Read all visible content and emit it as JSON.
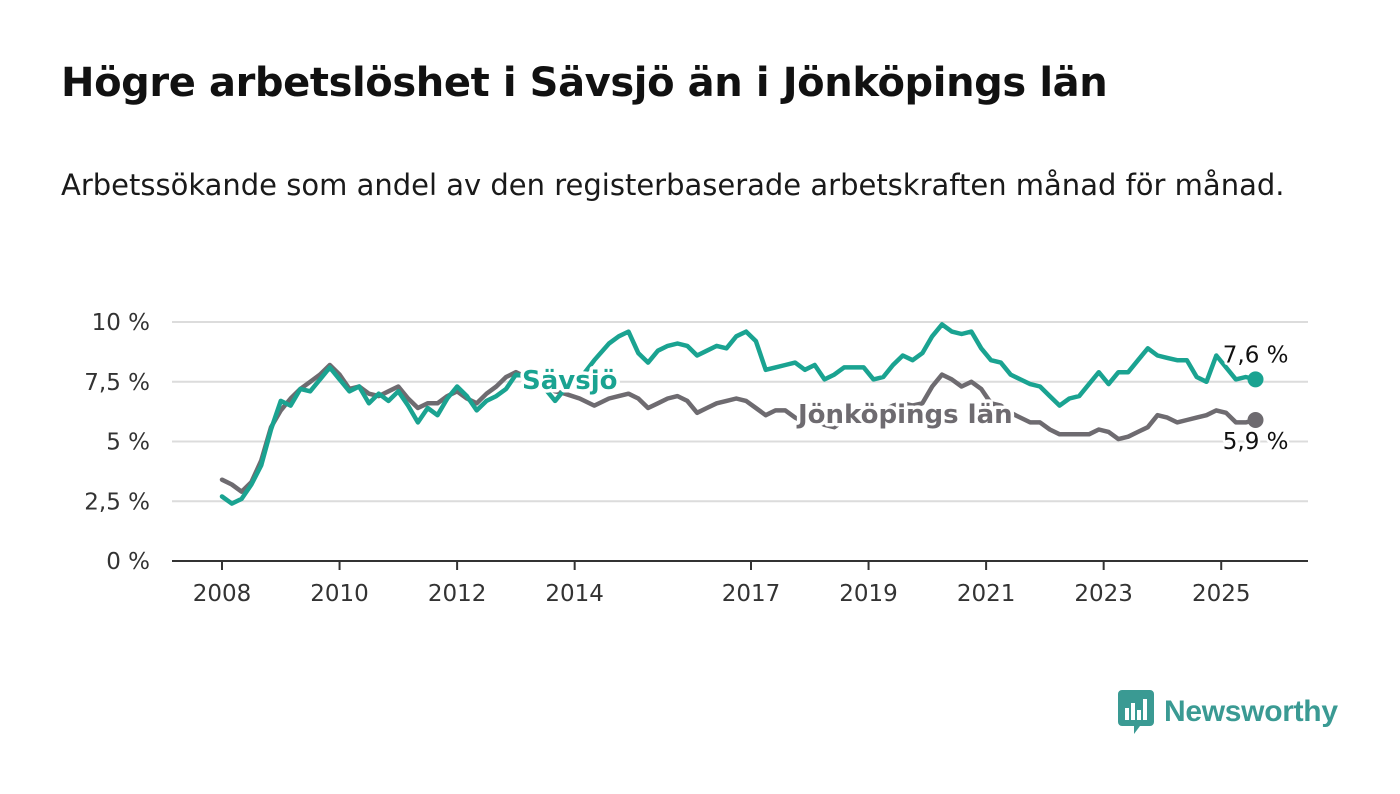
{
  "title": "Högre arbetslöshet i Sävsjö än i Jönköpings län",
  "subtitle": "Arbetssökande som andel av den registerbaserade arbetskraften månad för månad.",
  "brand": {
    "name": "Newsworthy",
    "icon": "newsworthy-logo-icon",
    "color": "#3a9a93"
  },
  "chart_data": {
    "type": "line",
    "title": "Högre arbetslöshet i Sävsjö än i Jönköpings län",
    "subtitle": "Arbetssökande som andel av den registerbaserade arbetskraften månad för månad.",
    "xlabel": "",
    "ylabel": "",
    "x_ticks": [
      "2008",
      "2010",
      "2012",
      "2014",
      "2017",
      "2019",
      "2021",
      "2023",
      "2025"
    ],
    "y_ticks": [
      "0 %",
      "2,5 %",
      "5 %",
      "7,5 %",
      "10 %"
    ],
    "ylim": [
      0,
      10
    ],
    "xlim": [
      "2007-02",
      "2026-05"
    ],
    "grid": "horizontal",
    "legend": "inline labels",
    "series": [
      {
        "name": "Sävsjö",
        "color": "#1aa391",
        "end_label": "7,6 %",
        "points": [
          [
            "2008-01",
            2.7
          ],
          [
            "2008-03",
            2.4
          ],
          [
            "2008-05",
            2.6
          ],
          [
            "2008-07",
            3.2
          ],
          [
            "2008-09",
            4.0
          ],
          [
            "2008-11",
            5.5
          ],
          [
            "2009-01",
            6.7
          ],
          [
            "2009-03",
            6.5
          ],
          [
            "2009-05",
            7.2
          ],
          [
            "2009-07",
            7.1
          ],
          [
            "2009-09",
            7.6
          ],
          [
            "2009-11",
            8.1
          ],
          [
            "2010-01",
            7.6
          ],
          [
            "2010-03",
            7.1
          ],
          [
            "2010-05",
            7.3
          ],
          [
            "2010-07",
            6.6
          ],
          [
            "2010-09",
            7.0
          ],
          [
            "2010-11",
            6.7
          ],
          [
            "2011-01",
            7.1
          ],
          [
            "2011-03",
            6.5
          ],
          [
            "2011-05",
            5.8
          ],
          [
            "2011-07",
            6.4
          ],
          [
            "2011-09",
            6.1
          ],
          [
            "2011-11",
            6.8
          ],
          [
            "2012-01",
            7.3
          ],
          [
            "2012-03",
            6.9
          ],
          [
            "2012-05",
            6.3
          ],
          [
            "2012-07",
            6.7
          ],
          [
            "2012-09",
            6.9
          ],
          [
            "2012-11",
            7.2
          ],
          [
            "2013-01",
            7.8
          ],
          [
            "2013-04",
            7.7
          ],
          [
            "2013-07",
            7.2
          ],
          [
            "2013-09",
            6.7
          ],
          [
            "2013-11",
            7.2
          ],
          [
            "2014-02",
            7.6
          ],
          [
            "2014-05",
            8.4
          ],
          [
            "2014-08",
            9.1
          ],
          [
            "2014-10",
            9.4
          ],
          [
            "2014-12",
            9.6
          ],
          [
            "2015-02",
            8.7
          ],
          [
            "2015-04",
            8.3
          ],
          [
            "2015-06",
            8.8
          ],
          [
            "2015-08",
            9.0
          ],
          [
            "2015-10",
            9.1
          ],
          [
            "2015-12",
            9.0
          ],
          [
            "2016-02",
            8.6
          ],
          [
            "2016-04",
            8.8
          ],
          [
            "2016-06",
            9.0
          ],
          [
            "2016-08",
            8.9
          ],
          [
            "2016-10",
            9.4
          ],
          [
            "2016-12",
            9.6
          ],
          [
            "2017-02",
            9.2
          ],
          [
            "2017-04",
            8.0
          ],
          [
            "2017-06",
            8.1
          ],
          [
            "2017-08",
            8.2
          ],
          [
            "2017-10",
            8.3
          ],
          [
            "2017-12",
            8.0
          ],
          [
            "2018-02",
            8.2
          ],
          [
            "2018-04",
            7.6
          ],
          [
            "2018-06",
            7.8
          ],
          [
            "2018-08",
            8.1
          ],
          [
            "2018-10",
            8.1
          ],
          [
            "2018-12",
            8.1
          ],
          [
            "2019-02",
            7.6
          ],
          [
            "2019-04",
            7.7
          ],
          [
            "2019-06",
            8.2
          ],
          [
            "2019-08",
            8.6
          ],
          [
            "2019-10",
            8.4
          ],
          [
            "2019-12",
            8.7
          ],
          [
            "2020-02",
            9.4
          ],
          [
            "2020-04",
            9.9
          ],
          [
            "2020-06",
            9.6
          ],
          [
            "2020-08",
            9.5
          ],
          [
            "2020-10",
            9.6
          ],
          [
            "2020-12",
            8.9
          ],
          [
            "2021-02",
            8.4
          ],
          [
            "2021-04",
            8.3
          ],
          [
            "2021-06",
            7.8
          ],
          [
            "2021-08",
            7.6
          ],
          [
            "2021-10",
            7.4
          ],
          [
            "2021-12",
            7.3
          ],
          [
            "2022-02",
            6.9
          ],
          [
            "2022-04",
            6.5
          ],
          [
            "2022-06",
            6.8
          ],
          [
            "2022-08",
            6.9
          ],
          [
            "2022-10",
            7.4
          ],
          [
            "2022-12",
            7.9
          ],
          [
            "2023-02",
            7.4
          ],
          [
            "2023-04",
            7.9
          ],
          [
            "2023-06",
            7.9
          ],
          [
            "2023-08",
            8.4
          ],
          [
            "2023-10",
            8.9
          ],
          [
            "2023-12",
            8.6
          ],
          [
            "2024-02",
            8.5
          ],
          [
            "2024-04",
            8.4
          ],
          [
            "2024-06",
            8.4
          ],
          [
            "2024-08",
            7.7
          ],
          [
            "2024-10",
            7.5
          ],
          [
            "2024-12",
            8.6
          ],
          [
            "2025-02",
            8.1
          ],
          [
            "2025-04",
            7.6
          ],
          [
            "2025-06",
            7.7
          ],
          [
            "2025-08",
            7.6
          ]
        ]
      },
      {
        "name": "Jönköpings län",
        "color": "#6e6b70",
        "end_label": "5,9 %",
        "points": [
          [
            "2008-01",
            3.4
          ],
          [
            "2008-03",
            3.2
          ],
          [
            "2008-05",
            2.9
          ],
          [
            "2008-07",
            3.3
          ],
          [
            "2008-09",
            4.2
          ],
          [
            "2008-11",
            5.6
          ],
          [
            "2009-01",
            6.3
          ],
          [
            "2009-03",
            6.8
          ],
          [
            "2009-05",
            7.2
          ],
          [
            "2009-07",
            7.5
          ],
          [
            "2009-09",
            7.8
          ],
          [
            "2009-11",
            8.2
          ],
          [
            "2010-01",
            7.8
          ],
          [
            "2010-03",
            7.2
          ],
          [
            "2010-05",
            7.3
          ],
          [
            "2010-07",
            7.0
          ],
          [
            "2010-09",
            6.9
          ],
          [
            "2010-11",
            7.1
          ],
          [
            "2011-01",
            7.3
          ],
          [
            "2011-03",
            6.8
          ],
          [
            "2011-05",
            6.4
          ],
          [
            "2011-07",
            6.6
          ],
          [
            "2011-09",
            6.6
          ],
          [
            "2011-11",
            6.9
          ],
          [
            "2012-01",
            7.1
          ],
          [
            "2012-03",
            6.8
          ],
          [
            "2012-05",
            6.6
          ],
          [
            "2012-07",
            7.0
          ],
          [
            "2012-09",
            7.3
          ],
          [
            "2012-11",
            7.7
          ],
          [
            "2013-01",
            7.9
          ],
          [
            "2013-04",
            7.6
          ],
          [
            "2013-07",
            7.3
          ],
          [
            "2013-09",
            7.1
          ],
          [
            "2013-11",
            7.0
          ],
          [
            "2014-02",
            6.8
          ],
          [
            "2014-05",
            6.5
          ],
          [
            "2014-08",
            6.8
          ],
          [
            "2014-10",
            6.9
          ],
          [
            "2014-12",
            7.0
          ],
          [
            "2015-02",
            6.8
          ],
          [
            "2015-04",
            6.4
          ],
          [
            "2015-06",
            6.6
          ],
          [
            "2015-08",
            6.8
          ],
          [
            "2015-10",
            6.9
          ],
          [
            "2015-12",
            6.7
          ],
          [
            "2016-02",
            6.2
          ],
          [
            "2016-04",
            6.4
          ],
          [
            "2016-06",
            6.6
          ],
          [
            "2016-08",
            6.7
          ],
          [
            "2016-10",
            6.8
          ],
          [
            "2016-12",
            6.7
          ],
          [
            "2017-02",
            6.4
          ],
          [
            "2017-04",
            6.1
          ],
          [
            "2017-06",
            6.3
          ],
          [
            "2017-08",
            6.3
          ],
          [
            "2017-10",
            6.0
          ],
          [
            "2017-12",
            5.8
          ],
          [
            "2018-02",
            5.9
          ],
          [
            "2018-04",
            5.7
          ],
          [
            "2018-06",
            5.6
          ],
          [
            "2018-08",
            5.9
          ],
          [
            "2018-10",
            6.1
          ],
          [
            "2018-12",
            6.3
          ],
          [
            "2019-02",
            6.2
          ],
          [
            "2019-04",
            6.3
          ],
          [
            "2019-06",
            6.5
          ],
          [
            "2019-08",
            6.6
          ],
          [
            "2019-10",
            6.5
          ],
          [
            "2019-12",
            6.6
          ],
          [
            "2020-02",
            7.3
          ],
          [
            "2020-04",
            7.8
          ],
          [
            "2020-06",
            7.6
          ],
          [
            "2020-08",
            7.3
          ],
          [
            "2020-10",
            7.5
          ],
          [
            "2020-12",
            7.2
          ],
          [
            "2021-02",
            6.6
          ],
          [
            "2021-04",
            6.5
          ],
          [
            "2021-06",
            6.2
          ],
          [
            "2021-08",
            6.0
          ],
          [
            "2021-10",
            5.8
          ],
          [
            "2021-12",
            5.8
          ],
          [
            "2022-02",
            5.5
          ],
          [
            "2022-04",
            5.3
          ],
          [
            "2022-06",
            5.3
          ],
          [
            "2022-08",
            5.3
          ],
          [
            "2022-10",
            5.3
          ],
          [
            "2022-12",
            5.5
          ],
          [
            "2023-02",
            5.4
          ],
          [
            "2023-04",
            5.1
          ],
          [
            "2023-06",
            5.2
          ],
          [
            "2023-08",
            5.4
          ],
          [
            "2023-10",
            5.6
          ],
          [
            "2023-12",
            6.1
          ],
          [
            "2024-02",
            6.0
          ],
          [
            "2024-04",
            5.8
          ],
          [
            "2024-06",
            5.9
          ],
          [
            "2024-08",
            6.0
          ],
          [
            "2024-10",
            6.1
          ],
          [
            "2024-12",
            6.3
          ],
          [
            "2025-02",
            6.2
          ],
          [
            "2025-04",
            5.8
          ],
          [
            "2025-06",
            5.8
          ],
          [
            "2025-08",
            5.9
          ]
        ]
      }
    ]
  }
}
